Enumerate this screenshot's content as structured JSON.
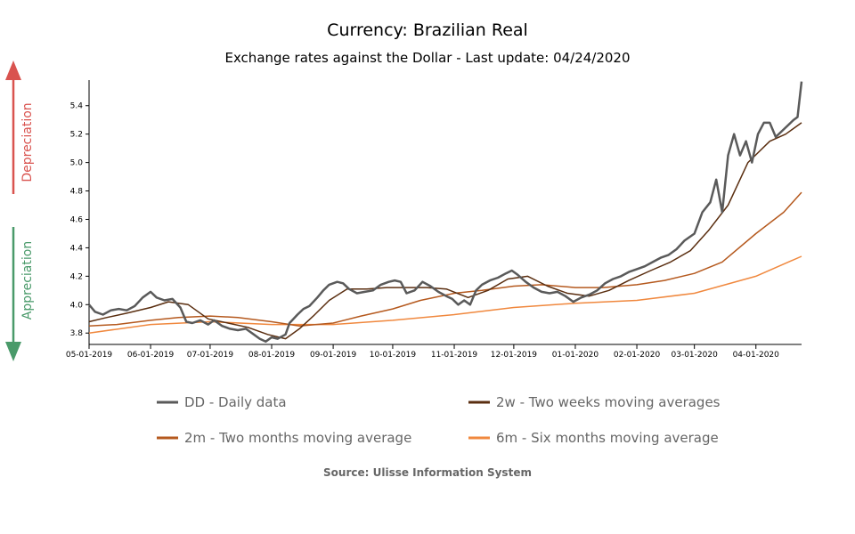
{
  "chart_data": {
    "type": "line",
    "title": "Currency: Brazilian Real",
    "subtitle": "Exchange rates against the Dollar - Last update: 04/24/2020",
    "source": "Source: Ulisse Information System",
    "side_labels": {
      "up": "Depreciation",
      "down": "Appreciation",
      "up_color": "#d9534f",
      "down_color": "#4a9a6a"
    },
    "xlabel": "",
    "ylabel": "",
    "x_range": [
      "2019-05-01",
      "2020-04-24"
    ],
    "ylim": [
      3.72,
      5.58
    ],
    "y_ticks": [
      3.8,
      4.0,
      4.2,
      4.4,
      4.6,
      4.8,
      5.0,
      5.2,
      5.4
    ],
    "y_tick_labels": [
      "3.8",
      "4.0",
      "4.2",
      "4.4",
      "4.6",
      "4.8",
      "5.0",
      "5.2",
      "5.4"
    ],
    "x_ticks": [
      "2019-05-01",
      "2019-06-01",
      "2019-07-01",
      "2019-08-01",
      "2019-09-01",
      "2019-10-01",
      "2019-11-01",
      "2019-12-01",
      "2020-01-01",
      "2020-02-01",
      "2020-03-01",
      "2020-04-01"
    ],
    "x_tick_labels": [
      "05-01-2019",
      "06-01-2019",
      "07-01-2019",
      "08-01-2019",
      "09-01-2019",
      "10-01-2019",
      "11-01-2019",
      "12-01-2019",
      "01-01-2020",
      "02-01-2020",
      "03-01-2020",
      "04-01-2020"
    ],
    "grid": false,
    "legend_position": "bottom",
    "series": [
      {
        "name": "DD - Daily data",
        "color": "#5a5a5a",
        "width": 2.5,
        "points": [
          [
            "2019-05-01",
            4.0
          ],
          [
            "2019-05-04",
            3.95
          ],
          [
            "2019-05-08",
            3.93
          ],
          [
            "2019-05-12",
            3.96
          ],
          [
            "2019-05-16",
            3.97
          ],
          [
            "2019-05-20",
            3.96
          ],
          [
            "2019-05-24",
            3.99
          ],
          [
            "2019-05-28",
            4.05
          ],
          [
            "2019-06-01",
            4.09
          ],
          [
            "2019-06-04",
            4.05
          ],
          [
            "2019-06-08",
            4.03
          ],
          [
            "2019-06-12",
            4.04
          ],
          [
            "2019-06-16",
            3.98
          ],
          [
            "2019-06-19",
            3.88
          ],
          [
            "2019-06-22",
            3.87
          ],
          [
            "2019-06-26",
            3.89
          ],
          [
            "2019-06-30",
            3.86
          ],
          [
            "2019-07-03",
            3.89
          ],
          [
            "2019-07-07",
            3.85
          ],
          [
            "2019-07-11",
            3.83
          ],
          [
            "2019-07-15",
            3.82
          ],
          [
            "2019-07-19",
            3.83
          ],
          [
            "2019-07-23",
            3.79
          ],
          [
            "2019-07-26",
            3.76
          ],
          [
            "2019-07-29",
            3.74
          ],
          [
            "2019-08-01",
            3.77
          ],
          [
            "2019-08-04",
            3.76
          ],
          [
            "2019-08-08",
            3.79
          ],
          [
            "2019-08-10",
            3.87
          ],
          [
            "2019-08-14",
            3.93
          ],
          [
            "2019-08-17",
            3.97
          ],
          [
            "2019-08-20",
            3.99
          ],
          [
            "2019-08-24",
            4.05
          ],
          [
            "2019-08-27",
            4.1
          ],
          [
            "2019-08-30",
            4.14
          ],
          [
            "2019-09-03",
            4.16
          ],
          [
            "2019-09-06",
            4.15
          ],
          [
            "2019-09-09",
            4.11
          ],
          [
            "2019-09-13",
            4.08
          ],
          [
            "2019-09-17",
            4.09
          ],
          [
            "2019-09-21",
            4.1
          ],
          [
            "2019-09-25",
            4.14
          ],
          [
            "2019-09-29",
            4.16
          ],
          [
            "2019-10-02",
            4.17
          ],
          [
            "2019-10-05",
            4.16
          ],
          [
            "2019-10-08",
            4.08
          ],
          [
            "2019-10-12",
            4.1
          ],
          [
            "2019-10-16",
            4.16
          ],
          [
            "2019-10-20",
            4.13
          ],
          [
            "2019-10-24",
            4.09
          ],
          [
            "2019-10-28",
            4.06
          ],
          [
            "2019-10-31",
            4.04
          ],
          [
            "2019-11-03",
            4.0
          ],
          [
            "2019-11-06",
            4.03
          ],
          [
            "2019-11-09",
            4.0
          ],
          [
            "2019-11-12",
            4.1
          ],
          [
            "2019-11-15",
            4.14
          ],
          [
            "2019-11-19",
            4.17
          ],
          [
            "2019-11-23",
            4.19
          ],
          [
            "2019-11-27",
            4.22
          ],
          [
            "2019-11-30",
            4.24
          ],
          [
            "2019-12-03",
            4.21
          ],
          [
            "2019-12-07",
            4.16
          ],
          [
            "2019-12-11",
            4.12
          ],
          [
            "2019-12-15",
            4.09
          ],
          [
            "2019-12-19",
            4.08
          ],
          [
            "2019-12-23",
            4.09
          ],
          [
            "2019-12-27",
            4.06
          ],
          [
            "2019-12-31",
            4.02
          ],
          [
            "2020-01-04",
            4.05
          ],
          [
            "2020-01-08",
            4.07
          ],
          [
            "2020-01-12",
            4.1
          ],
          [
            "2020-01-16",
            4.15
          ],
          [
            "2020-01-20",
            4.18
          ],
          [
            "2020-01-24",
            4.2
          ],
          [
            "2020-01-28",
            4.23
          ],
          [
            "2020-02-01",
            4.25
          ],
          [
            "2020-02-05",
            4.27
          ],
          [
            "2020-02-09",
            4.3
          ],
          [
            "2020-02-13",
            4.33
          ],
          [
            "2020-02-17",
            4.35
          ],
          [
            "2020-02-21",
            4.39
          ],
          [
            "2020-02-25",
            4.45
          ],
          [
            "2020-03-01",
            4.5
          ],
          [
            "2020-03-05",
            4.65
          ],
          [
            "2020-03-09",
            4.72
          ],
          [
            "2020-03-12",
            4.88
          ],
          [
            "2020-03-15",
            4.65
          ],
          [
            "2020-03-18",
            5.05
          ],
          [
            "2020-03-21",
            5.2
          ],
          [
            "2020-03-24",
            5.05
          ],
          [
            "2020-03-27",
            5.15
          ],
          [
            "2020-03-30",
            5.0
          ],
          [
            "2020-04-02",
            5.2
          ],
          [
            "2020-04-05",
            5.28
          ],
          [
            "2020-04-08",
            5.28
          ],
          [
            "2020-04-11",
            5.18
          ],
          [
            "2020-04-14",
            5.22
          ],
          [
            "2020-04-17",
            5.26
          ],
          [
            "2020-04-20",
            5.3
          ],
          [
            "2020-04-22",
            5.32
          ],
          [
            "2020-04-24",
            5.57
          ]
        ]
      },
      {
        "name": "2w - Two weeks moving averages",
        "color": "#5a2e10",
        "width": 1.5,
        "points": [
          [
            "2019-05-01",
            3.88
          ],
          [
            "2019-05-10",
            3.91
          ],
          [
            "2019-05-20",
            3.94
          ],
          [
            "2019-06-01",
            3.98
          ],
          [
            "2019-06-10",
            4.02
          ],
          [
            "2019-06-20",
            4.0
          ],
          [
            "2019-06-30",
            3.9
          ],
          [
            "2019-07-10",
            3.87
          ],
          [
            "2019-07-20",
            3.84
          ],
          [
            "2019-07-30",
            3.79
          ],
          [
            "2019-08-08",
            3.76
          ],
          [
            "2019-08-15",
            3.83
          ],
          [
            "2019-08-22",
            3.92
          ],
          [
            "2019-08-30",
            4.03
          ],
          [
            "2019-09-08",
            4.11
          ],
          [
            "2019-09-18",
            4.11
          ],
          [
            "2019-09-28",
            4.12
          ],
          [
            "2019-10-08",
            4.12
          ],
          [
            "2019-10-18",
            4.12
          ],
          [
            "2019-10-28",
            4.11
          ],
          [
            "2019-11-08",
            4.05
          ],
          [
            "2019-11-18",
            4.1
          ],
          [
            "2019-11-28",
            4.18
          ],
          [
            "2019-12-08",
            4.2
          ],
          [
            "2019-12-18",
            4.13
          ],
          [
            "2019-12-28",
            4.08
          ],
          [
            "2020-01-08",
            4.06
          ],
          [
            "2020-01-18",
            4.1
          ],
          [
            "2020-01-28",
            4.17
          ],
          [
            "2020-02-08",
            4.24
          ],
          [
            "2020-02-18",
            4.3
          ],
          [
            "2020-02-28",
            4.38
          ],
          [
            "2020-03-08",
            4.52
          ],
          [
            "2020-03-18",
            4.7
          ],
          [
            "2020-03-28",
            5.0
          ],
          [
            "2020-04-08",
            5.15
          ],
          [
            "2020-04-16",
            5.2
          ],
          [
            "2020-04-24",
            5.28
          ]
        ]
      },
      {
        "name": "2m - Two months moving average",
        "color": "#b5591e",
        "width": 1.5,
        "points": [
          [
            "2019-05-01",
            3.85
          ],
          [
            "2019-05-15",
            3.86
          ],
          [
            "2019-06-01",
            3.89
          ],
          [
            "2019-06-15",
            3.91
          ],
          [
            "2019-07-01",
            3.92
          ],
          [
            "2019-07-15",
            3.91
          ],
          [
            "2019-08-01",
            3.88
          ],
          [
            "2019-08-15",
            3.85
          ],
          [
            "2019-09-01",
            3.87
          ],
          [
            "2019-09-15",
            3.92
          ],
          [
            "2019-10-01",
            3.97
          ],
          [
            "2019-10-15",
            4.03
          ],
          [
            "2019-11-01",
            4.08
          ],
          [
            "2019-11-15",
            4.1
          ],
          [
            "2019-12-01",
            4.13
          ],
          [
            "2019-12-15",
            4.14
          ],
          [
            "2020-01-01",
            4.12
          ],
          [
            "2020-01-15",
            4.12
          ],
          [
            "2020-02-01",
            4.14
          ],
          [
            "2020-02-15",
            4.17
          ],
          [
            "2020-03-01",
            4.22
          ],
          [
            "2020-03-15",
            4.3
          ],
          [
            "2020-04-01",
            4.5
          ],
          [
            "2020-04-15",
            4.65
          ],
          [
            "2020-04-24",
            4.79
          ]
        ]
      },
      {
        "name": "6m - Six months moving average",
        "color": "#f0883e",
        "width": 1.5,
        "points": [
          [
            "2019-05-01",
            3.8
          ],
          [
            "2019-06-01",
            3.86
          ],
          [
            "2019-07-01",
            3.88
          ],
          [
            "2019-08-01",
            3.86
          ],
          [
            "2019-09-01",
            3.86
          ],
          [
            "2019-10-01",
            3.89
          ],
          [
            "2019-11-01",
            3.93
          ],
          [
            "2019-12-01",
            3.98
          ],
          [
            "2020-01-01",
            4.01
          ],
          [
            "2020-02-01",
            4.03
          ],
          [
            "2020-03-01",
            4.08
          ],
          [
            "2020-04-01",
            4.2
          ],
          [
            "2020-04-24",
            4.34
          ]
        ]
      }
    ]
  }
}
